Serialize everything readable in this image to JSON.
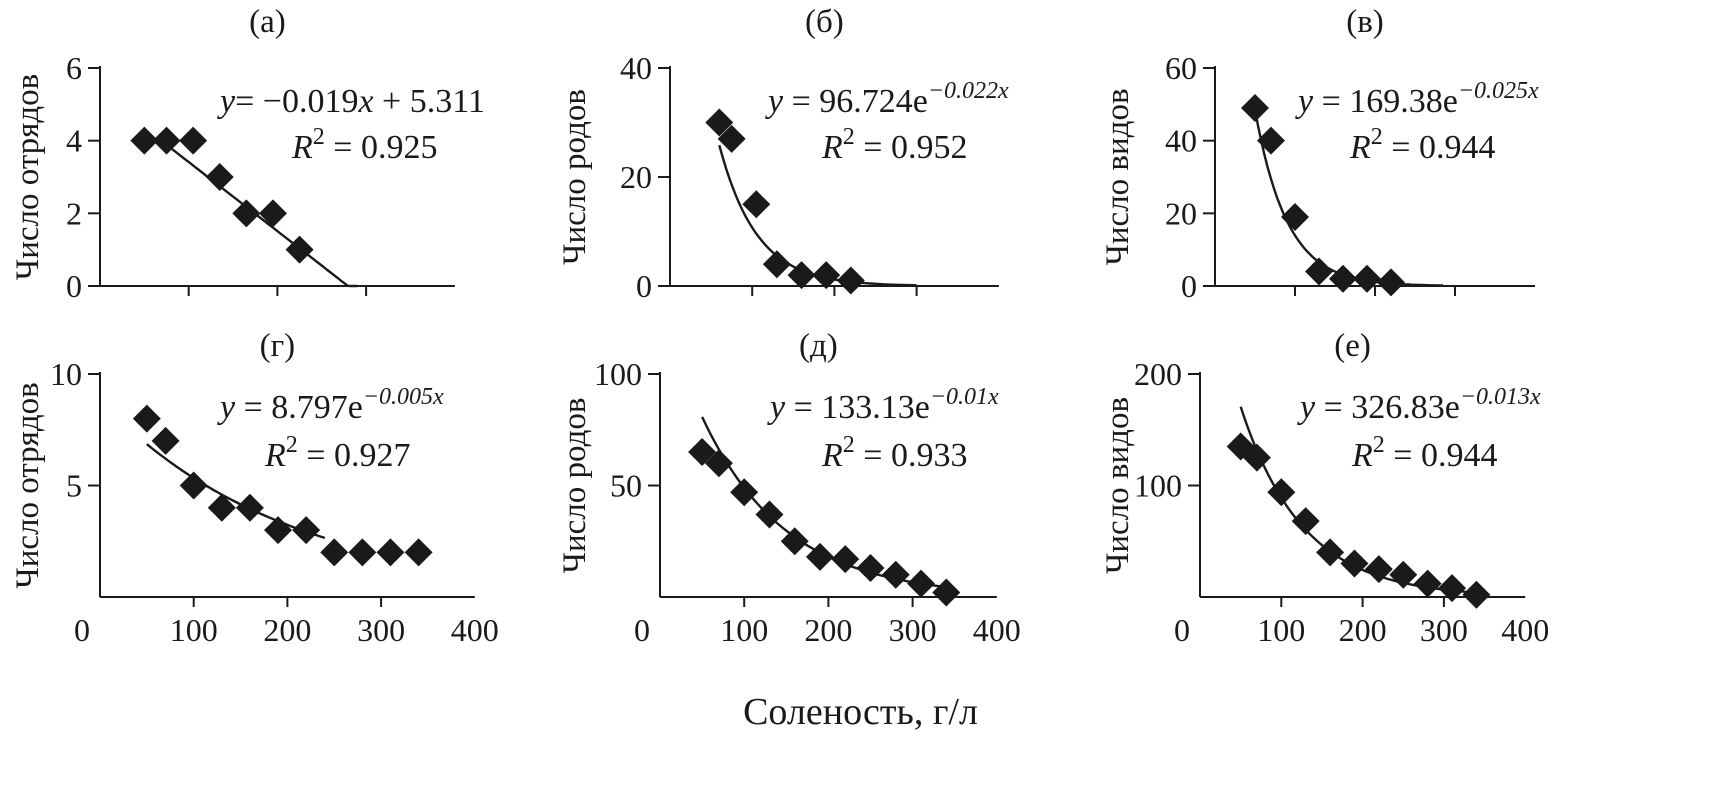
{
  "figure": {
    "xlabel": "Соленость, г/л"
  },
  "chart_data": [
    {
      "type": "scatter",
      "panel": "(а)",
      "ylabel": "Число отрядов",
      "x": [
        50,
        75,
        105,
        135,
        165,
        195,
        225
      ],
      "y": [
        4,
        4,
        4,
        3,
        2,
        2,
        1
      ],
      "xlim": [
        0,
        400
      ],
      "ylim": [
        0,
        6
      ],
      "yticks": [
        "0",
        "2",
        "4",
        "6"
      ],
      "ytick_values": [
        0,
        2,
        4,
        6
      ],
      "xticks": [],
      "xtick_values": [
        100,
        200,
        300
      ],
      "trend": {
        "kind": "linear",
        "a": -0.019,
        "b": 5.311,
        "x_from": 75,
        "x_to": 290
      },
      "equation": {
        "lhs": "y",
        "rhs": "= −0.019",
        "var": "x",
        "rest": " + 5.311"
      },
      "r2": {
        "lhs": "R",
        "sup": "2",
        "rhs": " = 0.925"
      }
    },
    {
      "type": "scatter",
      "panel": "(б)",
      "ylabel": "Число родов",
      "x": [
        60,
        75,
        105,
        130,
        160,
        190,
        220
      ],
      "y": [
        30,
        27,
        15,
        4,
        2,
        2,
        1
      ],
      "xlim": [
        0,
        400
      ],
      "ylim": [
        0,
        40
      ],
      "yticks": [
        "0",
        "20",
        "40"
      ],
      "ytick_values": [
        0,
        20,
        40
      ],
      "xticks": [],
      "xtick_values": [
        100,
        200,
        300
      ],
      "trend": {
        "kind": "exp",
        "a": 96.724,
        "b": -0.022,
        "x_from": 60,
        "x_to": 300
      },
      "equation": {
        "lhs": "y",
        "rhs": " = 96.724e",
        "sup": "−0.022x"
      },
      "r2": {
        "lhs": "R",
        "sup": "2",
        "rhs": " = 0.952"
      }
    },
    {
      "type": "scatter",
      "panel": "(в)",
      "ylabel": "Число видов",
      "x": [
        50,
        70,
        100,
        130,
        160,
        190,
        220
      ],
      "y": [
        49,
        40,
        19,
        4,
        2,
        2,
        1
      ],
      "xlim": [
        0,
        400
      ],
      "ylim": [
        0,
        60
      ],
      "yticks": [
        "0",
        "20",
        "40",
        "60"
      ],
      "ytick_values": [
        0,
        20,
        40,
        60
      ],
      "xticks": [],
      "xtick_values": [
        100,
        200,
        300
      ],
      "trend": {
        "kind": "exp",
        "a": 169.38,
        "b": -0.025,
        "x_from": 50,
        "x_to": 285
      },
      "equation": {
        "lhs": "y",
        "rhs": " = 169.38e",
        "sup": "−0.025x"
      },
      "r2": {
        "lhs": "R",
        "sup": "2",
        "rhs": " = 0.944"
      }
    },
    {
      "type": "scatter",
      "panel": "(г)",
      "ylabel": "Число отрядов",
      "x": [
        50,
        70,
        100,
        130,
        160,
        190,
        220,
        250,
        280,
        310,
        340
      ],
      "y": [
        8,
        7,
        5,
        4,
        4,
        3,
        3,
        2,
        2,
        2,
        2
      ],
      "xlim": [
        0,
        400
      ],
      "ylim": [
        0,
        10
      ],
      "yticks": [
        "5",
        "10"
      ],
      "ytick_values": [
        5,
        10
      ],
      "xticks": [
        "0",
        "100",
        "200",
        "300",
        "400"
      ],
      "xtick_values": [
        0,
        100,
        200,
        300,
        400
      ],
      "trend": {
        "kind": "exp",
        "a": 8.797,
        "b": -0.005,
        "x_from": 50,
        "x_to": 240
      },
      "equation": {
        "lhs": "y",
        "rhs": " = 8.797e",
        "sup": "−0.005x"
      },
      "r2": {
        "lhs": "R",
        "sup": "2",
        "rhs": " = 0.927"
      }
    },
    {
      "type": "scatter",
      "panel": "(д)",
      "ylabel": "Число родов",
      "x": [
        50,
        70,
        100,
        130,
        160,
        190,
        220,
        250,
        280,
        310,
        340
      ],
      "y": [
        65,
        60,
        47,
        37,
        25,
        18,
        17,
        13,
        10,
        6,
        2
      ],
      "xlim": [
        0,
        400
      ],
      "ylim": [
        0,
        100
      ],
      "yticks": [
        "50",
        "100"
      ],
      "ytick_values": [
        50,
        100
      ],
      "xticks": [
        "0",
        "100",
        "200",
        "300",
        "400"
      ],
      "xtick_values": [
        0,
        100,
        200,
        300,
        400
      ],
      "trend": {
        "kind": "exp",
        "a": 133.13,
        "b": -0.01,
        "x_from": 50,
        "x_to": 340
      },
      "equation": {
        "lhs": "y",
        "rhs": " = 133.13e",
        "sup": "−0.01x"
      },
      "r2": {
        "lhs": "R",
        "sup": "2",
        "rhs": " = 0.933"
      }
    },
    {
      "type": "scatter",
      "panel": "(е)",
      "ylabel": "Число видов",
      "x": [
        50,
        70,
        100,
        130,
        160,
        190,
        220,
        250,
        280,
        310,
        340
      ],
      "y": [
        135,
        125,
        94,
        68,
        40,
        30,
        25,
        20,
        12,
        8,
        2
      ],
      "xlim": [
        0,
        400
      ],
      "ylim": [
        0,
        200
      ],
      "yticks": [
        "100",
        "200"
      ],
      "ytick_values": [
        100,
        200
      ],
      "xticks": [
        "0",
        "100",
        "200",
        "300",
        "400"
      ],
      "xtick_values": [
        0,
        100,
        200,
        300,
        400
      ],
      "trend": {
        "kind": "exp",
        "a": 326.83,
        "b": -0.013,
        "x_from": 50,
        "x_to": 345
      },
      "equation": {
        "lhs": "y",
        "rhs": " = 326.83e",
        "sup": "−0.013x"
      },
      "r2": {
        "lhs": "R",
        "sup": "2",
        "rhs": " = 0.944"
      }
    }
  ]
}
